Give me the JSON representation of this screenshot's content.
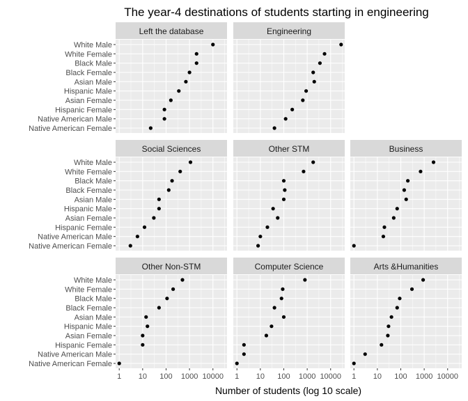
{
  "chart_data": {
    "type": "scatter",
    "title": "The year-4 destinations of students starting in engineering",
    "xlabel": "Number of students (log 10 scale)",
    "ylabel": "",
    "x_scale": "log10",
    "xlim": [
      0.7,
      40000
    ],
    "x_ticks": [
      1,
      10,
      100,
      1000,
      10000
    ],
    "x_tick_labels": [
      "1",
      "10",
      "100",
      "1000",
      "10000"
    ],
    "grid": true,
    "layout": "facet grid, 3 rows x 3 columns",
    "categories": [
      "White Male",
      "White Female",
      "Black Male",
      "Black Female",
      "Asian Male",
      "Hispanic Male",
      "Asian Female",
      "Hispanic Female",
      "Native American Male",
      "Native American Female"
    ],
    "colors": {
      "panel": "#ebebeb",
      "strip": "#d9d9d9",
      "grid": "#ffffff",
      "point": "#000000"
    },
    "facets": [
      {
        "name": "Left the database",
        "row": 0,
        "col": 0,
        "values": [
          10000,
          2000,
          2000,
          1000,
          700,
          350,
          160,
          85,
          85,
          22
        ]
      },
      {
        "name": "Engineering",
        "row": 0,
        "col": 1,
        "values": [
          28000,
          5500,
          3500,
          1800,
          2000,
          900,
          650,
          230,
          120,
          40
        ]
      },
      {
        "name": "Social Sciences",
        "row": 1,
        "col": 0,
        "values": [
          1100,
          400,
          180,
          130,
          50,
          50,
          30,
          12,
          6,
          3
        ]
      },
      {
        "name": "Other STM",
        "row": 1,
        "col": 1,
        "values": [
          1800,
          700,
          100,
          110,
          100,
          35,
          55,
          20,
          10,
          8
        ]
      },
      {
        "name": "Business",
        "row": 1,
        "col": 2,
        "values": [
          2500,
          700,
          200,
          140,
          170,
          70,
          50,
          20,
          18,
          1
        ]
      },
      {
        "name": "Other Non-STM",
        "row": 2,
        "col": 0,
        "values": [
          500,
          200,
          110,
          50,
          14,
          16,
          10,
          10,
          null,
          1
        ]
      },
      {
        "name": "Computer Science",
        "row": 2,
        "col": 1,
        "values": [
          800,
          90,
          80,
          40,
          100,
          30,
          18,
          2,
          2,
          1
        ]
      },
      {
        "name": "Arts &Humanities",
        "row": 2,
        "col": 2,
        "values": [
          900,
          300,
          90,
          70,
          40,
          30,
          28,
          15,
          3,
          1
        ]
      }
    ]
  }
}
